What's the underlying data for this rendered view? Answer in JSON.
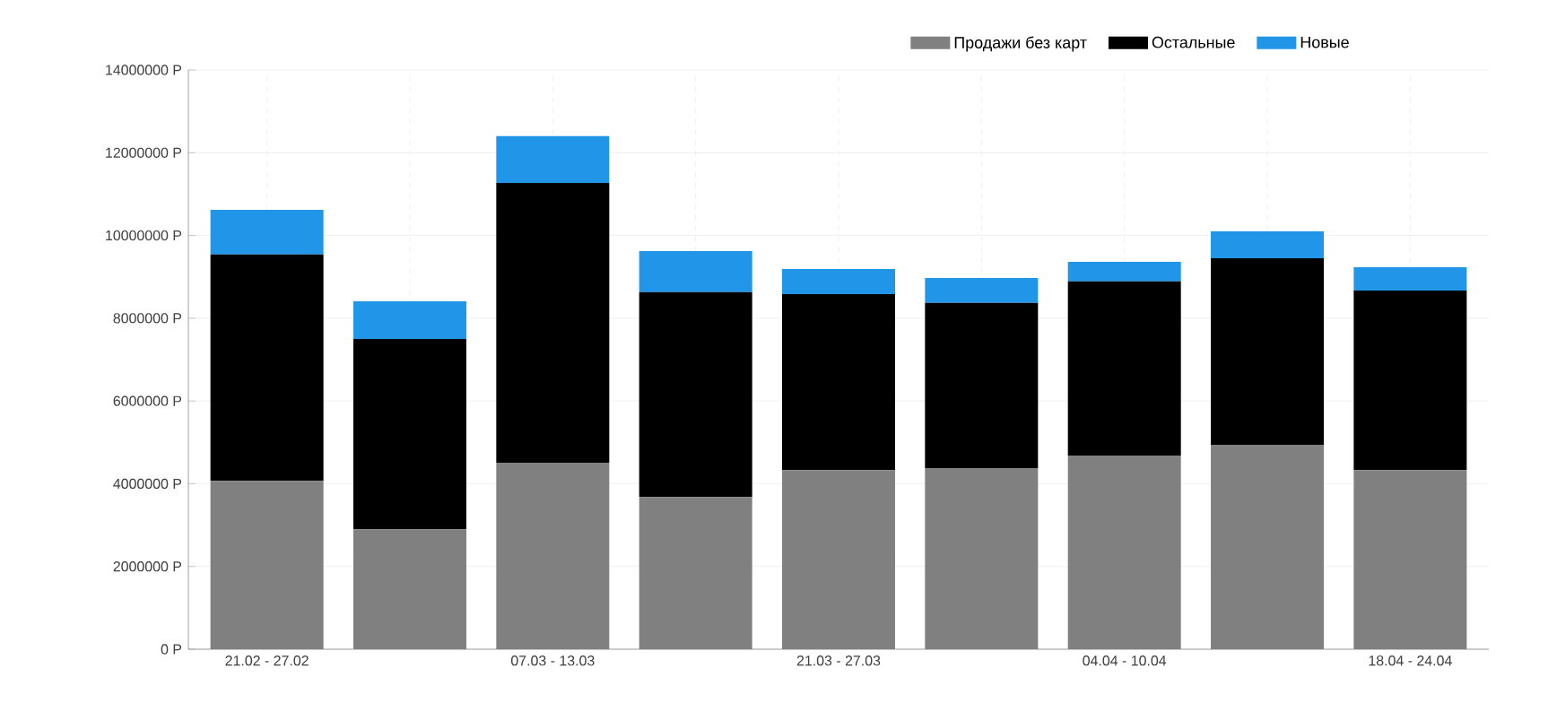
{
  "chart_data": {
    "type": "bar",
    "stacked": true,
    "categories": [
      "21.02 - 27.02",
      null,
      "07.03 - 13.03",
      null,
      "21.03 - 27.03",
      null,
      "04.04 - 10.04",
      null,
      "18.04 - 24.04"
    ],
    "series": [
      {
        "name": "Продажи без карт",
        "color": "#808080",
        "values": [
          4070000,
          2900000,
          4510000,
          3680000,
          4330000,
          4380000,
          4680000,
          4940000,
          4330000
        ]
      },
      {
        "name": "Остальные",
        "color": "#000000",
        "values": [
          5470000,
          4600000,
          6760000,
          4950000,
          4250000,
          3990000,
          4210000,
          4510000,
          4340000
        ]
      },
      {
        "name": "Новые",
        "color": "#2196e8",
        "values": [
          1080000,
          910000,
          1130000,
          990000,
          610000,
          600000,
          470000,
          650000,
          560000
        ]
      }
    ],
    "ylim": [
      0,
      14000000
    ],
    "yticks": [
      {
        "value": 0,
        "label": "0 Р"
      },
      {
        "value": 2000000,
        "label": "2000000 Р"
      },
      {
        "value": 4000000,
        "label": "4000000 Р"
      },
      {
        "value": 6000000,
        "label": "6000000 Р"
      },
      {
        "value": 8000000,
        "label": "8000000 Р"
      },
      {
        "value": 10000000,
        "label": "10000000 Р"
      },
      {
        "value": 12000000,
        "label": "12000000 Р"
      },
      {
        "value": 14000000,
        "label": "14000000 Р"
      }
    ],
    "grid": true,
    "legend": "top"
  }
}
